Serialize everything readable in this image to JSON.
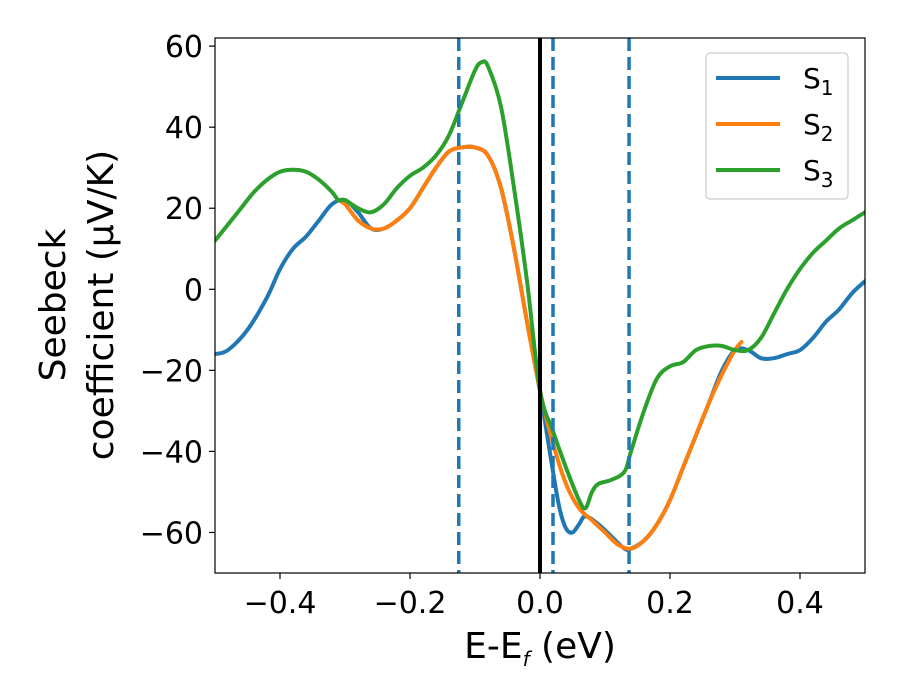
{
  "chart_data": {
    "type": "line",
    "xlabel_main": "E-E",
    "xlabel_sub": "f",
    "xlabel_unit": " (eV)",
    "ylabel_line1": "Seebeck",
    "ylabel_line2": "coefficient  (μV/K)",
    "xlim": [
      -0.5,
      0.5
    ],
    "ylim": [
      -70,
      62
    ],
    "xticks": [
      -0.4,
      -0.2,
      0.0,
      0.2,
      0.4
    ],
    "xtick_labels": [
      "−0.4",
      "−0.2",
      "0.0",
      "0.2",
      "0.4"
    ],
    "yticks": [
      -60,
      -40,
      -20,
      0,
      20,
      40,
      60
    ],
    "ytick_labels": [
      "−60",
      "−40",
      "−20",
      "0",
      "20",
      "40",
      "60"
    ],
    "grid": false,
    "legend_position": "top-right",
    "vertical_lines": [
      {
        "x": -0.125,
        "style": "dashed",
        "color": "#1f77b4"
      },
      {
        "x": 0.0,
        "style": "solid",
        "color": "#000000"
      },
      {
        "x": 0.02,
        "style": "dashed",
        "color": "#1f77b4"
      },
      {
        "x": 0.137,
        "style": "dashed",
        "color": "#1f77b4"
      }
    ],
    "series": [
      {
        "name": "S",
        "name_sub": "1",
        "color": "#1f77b4",
        "points": [
          [
            -0.5,
            -16
          ],
          [
            -0.48,
            -15
          ],
          [
            -0.45,
            -10
          ],
          [
            -0.42,
            -2
          ],
          [
            -0.4,
            5
          ],
          [
            -0.38,
            10
          ],
          [
            -0.36,
            13
          ],
          [
            -0.34,
            17
          ],
          [
            -0.32,
            21
          ],
          [
            -0.3,
            22
          ],
          [
            -0.28,
            19
          ],
          [
            -0.26,
            15
          ],
          [
            -0.24,
            15
          ],
          [
            -0.22,
            17
          ],
          [
            -0.2,
            20
          ],
          [
            -0.18,
            25
          ],
          [
            -0.16,
            30
          ],
          [
            -0.14,
            34
          ],
          [
            -0.12,
            35
          ],
          [
            -0.1,
            35
          ],
          [
            -0.08,
            33
          ],
          [
            -0.06,
            25
          ],
          [
            -0.04,
            10
          ],
          [
            -0.02,
            -8
          ],
          [
            0.0,
            -25
          ],
          [
            0.01,
            -35
          ],
          [
            0.02,
            -45
          ],
          [
            0.03,
            -54
          ],
          [
            0.04,
            -59
          ],
          [
            0.05,
            -60
          ],
          [
            0.06,
            -58
          ],
          [
            0.07,
            -56
          ],
          [
            0.09,
            -58
          ],
          [
            0.11,
            -61
          ],
          [
            0.13,
            -64
          ],
          [
            0.14,
            -64
          ],
          [
            0.16,
            -62
          ],
          [
            0.18,
            -58
          ],
          [
            0.2,
            -52
          ],
          [
            0.22,
            -44
          ],
          [
            0.24,
            -36
          ],
          [
            0.26,
            -28
          ],
          [
            0.28,
            -20
          ],
          [
            0.3,
            -15
          ],
          [
            0.32,
            -15
          ],
          [
            0.34,
            -17
          ],
          [
            0.36,
            -17
          ],
          [
            0.38,
            -16
          ],
          [
            0.4,
            -15
          ],
          [
            0.42,
            -12
          ],
          [
            0.44,
            -8
          ],
          [
            0.46,
            -5
          ],
          [
            0.48,
            -1
          ],
          [
            0.5,
            2
          ]
        ]
      },
      {
        "name": "S",
        "name_sub": "2",
        "color": "#ff7f0e",
        "points": [
          [
            -0.31,
            22
          ],
          [
            -0.3,
            21
          ],
          [
            -0.28,
            17
          ],
          [
            -0.26,
            15
          ],
          [
            -0.24,
            15
          ],
          [
            -0.22,
            17
          ],
          [
            -0.2,
            20
          ],
          [
            -0.18,
            25
          ],
          [
            -0.16,
            30
          ],
          [
            -0.14,
            34
          ],
          [
            -0.12,
            35
          ],
          [
            -0.1,
            35
          ],
          [
            -0.08,
            33
          ],
          [
            -0.06,
            25
          ],
          [
            -0.04,
            10
          ],
          [
            -0.02,
            -8
          ],
          [
            0.0,
            -25
          ],
          [
            0.02,
            -38
          ],
          [
            0.04,
            -48
          ],
          [
            0.06,
            -54
          ],
          [
            0.08,
            -57
          ],
          [
            0.1,
            -60
          ],
          [
            0.12,
            -63
          ],
          [
            0.14,
            -64
          ],
          [
            0.16,
            -62
          ],
          [
            0.18,
            -58
          ],
          [
            0.2,
            -52
          ],
          [
            0.22,
            -44
          ],
          [
            0.24,
            -36
          ],
          [
            0.26,
            -28
          ],
          [
            0.28,
            -21
          ],
          [
            0.3,
            -15
          ],
          [
            0.31,
            -13
          ]
        ]
      },
      {
        "name": "S",
        "name_sub": "3",
        "color": "#2ca02c",
        "points": [
          [
            -0.5,
            12
          ],
          [
            -0.48,
            16
          ],
          [
            -0.46,
            20
          ],
          [
            -0.44,
            24
          ],
          [
            -0.42,
            27
          ],
          [
            -0.4,
            29
          ],
          [
            -0.38,
            29.5
          ],
          [
            -0.36,
            29
          ],
          [
            -0.34,
            27
          ],
          [
            -0.32,
            24
          ],
          [
            -0.31,
            22
          ],
          [
            -0.3,
            22
          ],
          [
            -0.28,
            20
          ],
          [
            -0.26,
            19
          ],
          [
            -0.24,
            21
          ],
          [
            -0.22,
            25
          ],
          [
            -0.2,
            28
          ],
          [
            -0.18,
            30
          ],
          [
            -0.16,
            33
          ],
          [
            -0.14,
            38
          ],
          [
            -0.12,
            46
          ],
          [
            -0.1,
            54
          ],
          [
            -0.09,
            56
          ],
          [
            -0.08,
            55
          ],
          [
            -0.06,
            45
          ],
          [
            -0.04,
            25
          ],
          [
            -0.02,
            2
          ],
          [
            0.0,
            -25
          ],
          [
            0.02,
            -35
          ],
          [
            0.04,
            -44
          ],
          [
            0.06,
            -52
          ],
          [
            0.07,
            -54
          ],
          [
            0.08,
            -50
          ],
          [
            0.09,
            -48
          ],
          [
            0.11,
            -47
          ],
          [
            0.13,
            -45
          ],
          [
            0.14,
            -40
          ],
          [
            0.16,
            -30
          ],
          [
            0.18,
            -22
          ],
          [
            0.2,
            -19
          ],
          [
            0.22,
            -18
          ],
          [
            0.24,
            -15
          ],
          [
            0.26,
            -14
          ],
          [
            0.28,
            -14
          ],
          [
            0.3,
            -15
          ],
          [
            0.32,
            -15
          ],
          [
            0.34,
            -12
          ],
          [
            0.36,
            -6
          ],
          [
            0.38,
            0
          ],
          [
            0.4,
            5
          ],
          [
            0.42,
            9
          ],
          [
            0.44,
            12
          ],
          [
            0.46,
            15
          ],
          [
            0.48,
            17
          ],
          [
            0.5,
            19
          ]
        ]
      }
    ]
  }
}
